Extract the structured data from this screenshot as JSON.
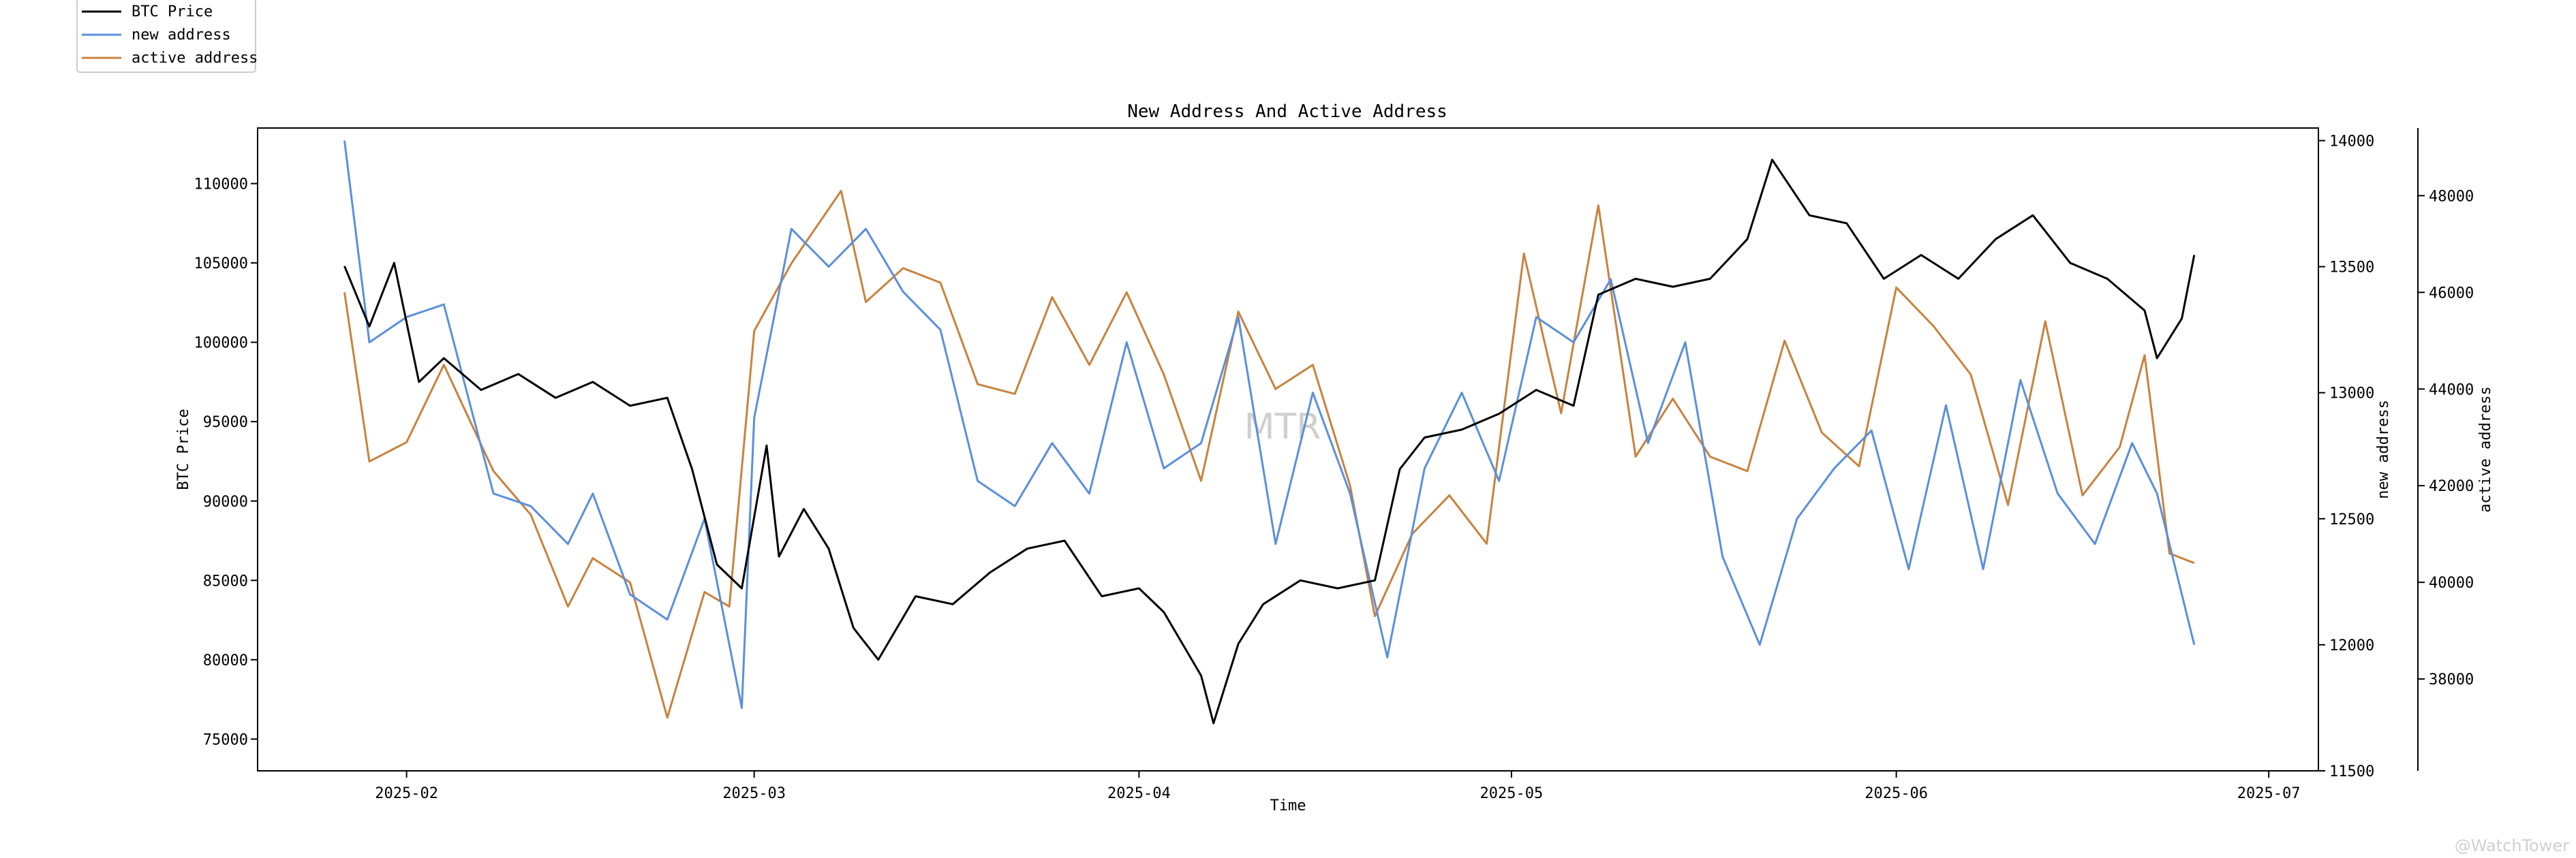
{
  "chart_data": {
    "type": "line",
    "title": "New Address And Active Address",
    "xlabel": "Time",
    "ylabel_left": "BTC Price",
    "ylabel_right1": "new address",
    "ylabel_right2": "active address",
    "watermark": "MTR",
    "corner_watermark": "@WatchTower",
    "x_range": [
      "2025-01-20",
      "2025-07-05"
    ],
    "x_ticks": [
      "2025-02-01",
      "2025-03-01",
      "2025-04-01",
      "2025-05-01",
      "2025-06-01",
      "2025-07-01"
    ],
    "x_tick_labels": [
      "2025-02",
      "2025-03",
      "2025-04",
      "2025-05",
      "2025-06",
      "2025-07"
    ],
    "y_left": {
      "range": [
        73000,
        113500
      ],
      "ticks": [
        75000,
        80000,
        85000,
        90000,
        95000,
        100000,
        105000,
        110000
      ]
    },
    "y_right1": {
      "range": [
        11500,
        14050
      ],
      "ticks": [
        11500,
        12000,
        12500,
        13000,
        13500,
        14000
      ]
    },
    "y_right2": {
      "range": [
        36100,
        49400
      ],
      "ticks": [
        38000,
        40000,
        42000,
        44000,
        46000,
        48000
      ]
    },
    "legend": {
      "placement": "top-left outside",
      "entries": [
        "BTC Price",
        "new address",
        "active address"
      ]
    },
    "colors": {
      "btc": "#000000",
      "new": "#5b8fdc",
      "active": "#c8823e"
    },
    "series": [
      {
        "name": "BTC Price",
        "axis": "left",
        "x": [
          "2025-01-27",
          "2025-01-29",
          "2025-01-31",
          "2025-02-02",
          "2025-02-04",
          "2025-02-07",
          "2025-02-10",
          "2025-02-13",
          "2025-02-16",
          "2025-02-19",
          "2025-02-22",
          "2025-02-24",
          "2025-02-26",
          "2025-02-28",
          "2025-03-02",
          "2025-03-03",
          "2025-03-05",
          "2025-03-07",
          "2025-03-09",
          "2025-03-11",
          "2025-03-14",
          "2025-03-17",
          "2025-03-20",
          "2025-03-23",
          "2025-03-26",
          "2025-03-29",
          "2025-04-01",
          "2025-04-03",
          "2025-04-06",
          "2025-04-07",
          "2025-04-09",
          "2025-04-11",
          "2025-04-14",
          "2025-04-17",
          "2025-04-20",
          "2025-04-22",
          "2025-04-24",
          "2025-04-27",
          "2025-04-30",
          "2025-05-03",
          "2025-05-06",
          "2025-05-08",
          "2025-05-11",
          "2025-05-14",
          "2025-05-17",
          "2025-05-20",
          "2025-05-22",
          "2025-05-25",
          "2025-05-28",
          "2025-05-31",
          "2025-06-03",
          "2025-06-06",
          "2025-06-09",
          "2025-06-12",
          "2025-06-15",
          "2025-06-18",
          "2025-06-21",
          "2025-06-22",
          "2025-06-24",
          "2025-06-25"
        ],
        "y": [
          104800,
          101000,
          105000,
          97500,
          99000,
          97000,
          98000,
          96500,
          97500,
          96000,
          96500,
          92000,
          86000,
          84500,
          93500,
          86500,
          89500,
          87000,
          82000,
          80000,
          84000,
          83500,
          85500,
          87000,
          87500,
          84000,
          84500,
          83000,
          79000,
          76000,
          81000,
          83500,
          85000,
          84500,
          85000,
          92000,
          94000,
          94500,
          95500,
          97000,
          96000,
          103000,
          104000,
          103500,
          104000,
          106500,
          111500,
          108000,
          107500,
          104000,
          105500,
          104000,
          106500,
          108000,
          105000,
          104000,
          102000,
          99000,
          101500,
          105500
        ]
      },
      {
        "name": "new address",
        "axis": "right1",
        "x": [
          "2025-01-27",
          "2025-01-29",
          "2025-02-01",
          "2025-02-04",
          "2025-02-08",
          "2025-02-11",
          "2025-02-14",
          "2025-02-16",
          "2025-02-19",
          "2025-02-22",
          "2025-02-25",
          "2025-02-28",
          "2025-03-01",
          "2025-03-04",
          "2025-03-07",
          "2025-03-10",
          "2025-03-13",
          "2025-03-16",
          "2025-03-19",
          "2025-03-22",
          "2025-03-25",
          "2025-03-28",
          "2025-03-31",
          "2025-04-03",
          "2025-04-06",
          "2025-04-09",
          "2025-04-12",
          "2025-04-15",
          "2025-04-18",
          "2025-04-21",
          "2025-04-24",
          "2025-04-27",
          "2025-04-30",
          "2025-05-03",
          "2025-05-06",
          "2025-05-09",
          "2025-05-12",
          "2025-05-15",
          "2025-05-18",
          "2025-05-21",
          "2025-05-24",
          "2025-05-27",
          "2025-05-30",
          "2025-06-02",
          "2025-06-05",
          "2025-06-08",
          "2025-06-11",
          "2025-06-14",
          "2025-06-17",
          "2025-06-20",
          "2025-06-22",
          "2025-06-24",
          "2025-06-25"
        ],
        "y": [
          14000,
          13200,
          13300,
          13350,
          12600,
          12550,
          12400,
          12600,
          12200,
          12100,
          12500,
          11750,
          12900,
          13650,
          13500,
          13650,
          13400,
          13250,
          12650,
          12550,
          12800,
          12600,
          13200,
          12700,
          12800,
          13300,
          12400,
          13000,
          12600,
          11950,
          12700,
          13000,
          12650,
          13300,
          13200,
          13450,
          12800,
          13200,
          12350,
          12000,
          12500,
          12700,
          12850,
          12300,
          12950,
          12300,
          13050,
          12600,
          12400,
          12800,
          12600,
          12200,
          12000
        ]
      },
      {
        "name": "active address",
        "axis": "right2",
        "x": [
          "2025-01-27",
          "2025-01-29",
          "2025-02-01",
          "2025-02-04",
          "2025-02-08",
          "2025-02-11",
          "2025-02-14",
          "2025-02-16",
          "2025-02-19",
          "2025-02-22",
          "2025-02-25",
          "2025-02-27",
          "2025-03-01",
          "2025-03-04",
          "2025-03-08",
          "2025-03-10",
          "2025-03-13",
          "2025-03-16",
          "2025-03-19",
          "2025-03-22",
          "2025-03-25",
          "2025-03-28",
          "2025-03-31",
          "2025-04-03",
          "2025-04-06",
          "2025-04-09",
          "2025-04-12",
          "2025-04-15",
          "2025-04-18",
          "2025-04-20",
          "2025-04-23",
          "2025-04-26",
          "2025-04-29",
          "2025-05-02",
          "2025-05-05",
          "2025-05-08",
          "2025-05-11",
          "2025-05-14",
          "2025-05-17",
          "2025-05-20",
          "2025-05-23",
          "2025-05-26",
          "2025-05-29",
          "2025-06-01",
          "2025-06-04",
          "2025-06-07",
          "2025-06-10",
          "2025-06-13",
          "2025-06-16",
          "2025-06-19",
          "2025-06-21",
          "2025-06-23",
          "2025-06-25"
        ],
        "y": [
          46000,
          42500,
          42900,
          44500,
          42300,
          41400,
          39500,
          40500,
          40000,
          37200,
          39800,
          39500,
          45200,
          46600,
          48100,
          45800,
          46500,
          46200,
          44100,
          43900,
          45900,
          44500,
          46000,
          44300,
          42100,
          45600,
          44000,
          44500,
          42000,
          39300,
          41000,
          41800,
          40800,
          46800,
          43500,
          47800,
          42600,
          43800,
          42600,
          42300,
          45000,
          43100,
          42400,
          46100,
          45300,
          44300,
          41600,
          45400,
          41800,
          42800,
          44700,
          40600,
          40400
        ]
      }
    ]
  }
}
